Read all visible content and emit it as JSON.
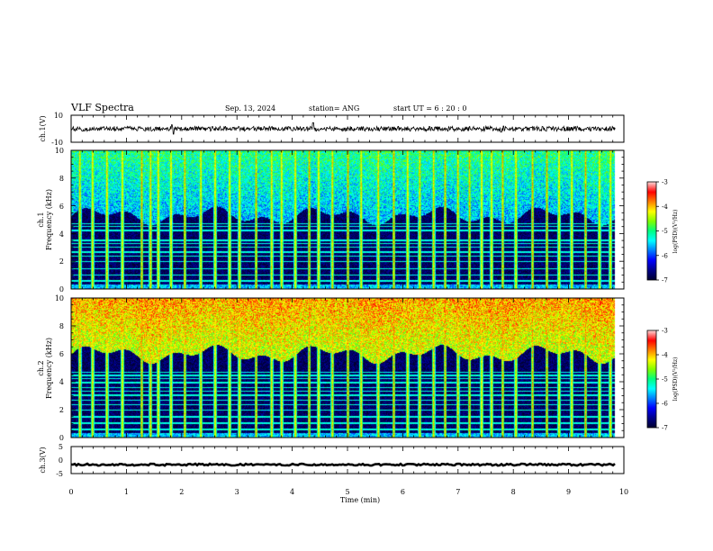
{
  "header": {
    "title": "VLF Spectra",
    "date": "Sep. 13, 2024",
    "station": "station= ANG",
    "start": "start  UT =   6  : 20 : 0"
  },
  "chart_data": [
    {
      "type": "line",
      "panel": "ch1-waveform",
      "ylabel": "ch.1(V)",
      "ylim": [
        -10,
        10
      ],
      "yticks": [
        -10,
        10
      ],
      "baseline": 0,
      "noise_amplitude": 1.8,
      "spikes": [
        {
          "t": 1.82,
          "v": 3.0
        },
        {
          "t": 1.85,
          "v": -4.0
        },
        {
          "t": 4.38,
          "v": 4.5
        },
        {
          "t": 7.78,
          "v": -2.5
        },
        {
          "t": 7.82,
          "v": 2.0
        }
      ],
      "xlim": [
        0,
        10
      ],
      "grid": false
    },
    {
      "type": "heatmap",
      "panel": "ch1-spectrogram",
      "ylabel": "Frequency (kHz)",
      "channel_label": "ch.1",
      "ylim": [
        0,
        10
      ],
      "yticks": [
        0,
        2,
        4,
        6,
        8,
        10
      ],
      "xlim": [
        0,
        10
      ],
      "data_extent_min": 9.83,
      "colorbar": {
        "label": "log(PSD)(V²/Hz)",
        "ticks": [
          -3,
          -4,
          -5,
          -6,
          -7
        ],
        "range": [
          -7,
          -3
        ]
      },
      "noise_floor_khz": 5.3,
      "high_band_level": -5.6,
      "low_band_level": -6.8,
      "narrowband_lines_khz": [
        0.6,
        1.05,
        1.5,
        2.0,
        2.4,
        2.7,
        3.05,
        3.3,
        3.55,
        4.25,
        4.55,
        4.75
      ],
      "sferics_min": [
        0.15,
        0.38,
        0.64,
        0.92,
        1.27,
        1.43,
        1.57,
        1.8,
        2.05,
        2.34,
        2.6,
        2.86,
        3.04,
        3.34,
        3.62,
        3.8,
        4.05,
        4.3,
        4.47,
        4.72,
        5.0,
        5.24,
        5.55,
        5.83,
        6.08,
        6.3,
        6.55,
        6.76,
        6.99,
        7.2,
        7.42,
        7.6,
        7.8,
        8.04,
        8.34,
        8.6,
        8.82,
        9.05,
        9.3,
        9.55,
        9.75
      ]
    },
    {
      "type": "heatmap",
      "panel": "ch2-spectrogram",
      "ylabel": "Frequency (kHz)",
      "channel_label": "ch.2",
      "ylim": [
        0,
        10
      ],
      "yticks": [
        0,
        2,
        4,
        6,
        8,
        10
      ],
      "xlim": [
        0,
        10
      ],
      "data_extent_min": 9.83,
      "colorbar": {
        "label": "log(PSD)(V²/Hz)",
        "ticks": [
          -3,
          -4,
          -5,
          -6,
          -7
        ],
        "range": [
          -7,
          -3
        ]
      },
      "noise_floor_khz": 6.0,
      "high_band_level": -4.4,
      "low_band_level": -6.8,
      "narrowband_lines_khz": [
        0.6,
        1.05,
        1.5,
        2.0,
        2.4,
        2.7,
        3.05,
        3.35,
        3.6,
        3.95,
        4.25,
        4.5,
        4.7
      ],
      "sferics_min": [
        0.15,
        0.38,
        0.64,
        0.92,
        1.27,
        1.43,
        1.57,
        1.8,
        2.05,
        2.34,
        2.6,
        2.86,
        3.04,
        3.34,
        3.62,
        3.8,
        4.05,
        4.3,
        4.47,
        4.72,
        5.0,
        5.24,
        5.55,
        5.83,
        6.08,
        6.3,
        6.55,
        6.76,
        6.99,
        7.2,
        7.42,
        7.6,
        7.8,
        8.04,
        8.34,
        8.6,
        8.82,
        9.05,
        9.3,
        9.55,
        9.75
      ]
    },
    {
      "type": "line",
      "panel": "ch3-waveform",
      "ylabel": "ch.3(V)",
      "ylim": [
        -5,
        5
      ],
      "yticks": [
        -5,
        0,
        5
      ],
      "baseline": -1.7,
      "noise_amplitude": 0.35,
      "xlim": [
        0,
        10
      ],
      "xticks": [
        0,
        1,
        2,
        3,
        4,
        5,
        6,
        7,
        8,
        9,
        10
      ],
      "xlabel": "Time  (min)",
      "grid": false
    }
  ],
  "colors": {
    "colormap": [
      "#000033",
      "#00008f",
      "#0000ff",
      "#0080ff",
      "#00ffff",
      "#00ff80",
      "#80ff00",
      "#ffff00",
      "#ff8000",
      "#ff0000",
      "#ffd0d0"
    ]
  }
}
